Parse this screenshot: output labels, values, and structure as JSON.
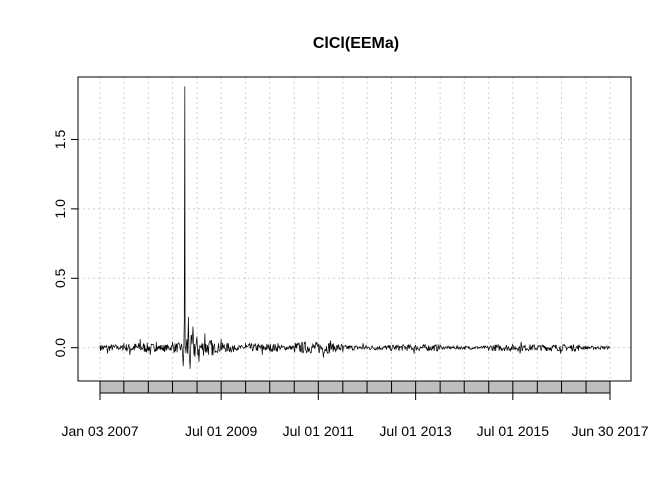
{
  "chart_data": {
    "type": "line",
    "title": "ClCl(EEMa)",
    "xlabel": "",
    "ylabel": "",
    "grid": true,
    "ylim": [
      -0.24,
      1.95
    ],
    "xlim": [
      "2007-01-03",
      "2017-06-30"
    ],
    "y_ticks": [
      {
        "value": 0.0,
        "label": "0.0"
      },
      {
        "value": 0.5,
        "label": "0.5"
      },
      {
        "value": 1.0,
        "label": "1.0"
      },
      {
        "value": 1.5,
        "label": "1.5"
      }
    ],
    "x_tick_labels": [
      {
        "date": "2007-01-03",
        "label": "Jan 03 2007"
      },
      {
        "date": "2009-07-01",
        "label": "Jul 01 2009"
      },
      {
        "date": "2011-07-01",
        "label": "Jul 01 2011"
      },
      {
        "date": "2013-07-01",
        "label": "Jul 01 2013"
      },
      {
        "date": "2015-07-01",
        "label": "Jul 01 2015"
      },
      {
        "date": "2017-06-30",
        "label": "Jun 30 2017"
      }
    ],
    "series": [
      {
        "color": "#000000",
        "points": [
          {
            "x": "2007-01-03",
            "y": 0.01
          },
          {
            "x": "2007-03-01",
            "y": -0.04
          },
          {
            "x": "2007-05-01",
            "y": 0.02
          },
          {
            "x": "2007-07-01",
            "y": 0.03
          },
          {
            "x": "2007-08-15",
            "y": -0.05
          },
          {
            "x": "2007-11-01",
            "y": 0.06
          },
          {
            "x": "2008-01-15",
            "y": -0.05
          },
          {
            "x": "2008-03-01",
            "y": 0.04
          },
          {
            "x": "2008-05-01",
            "y": -0.03
          },
          {
            "x": "2008-07-01",
            "y": 0.04
          },
          {
            "x": "2008-09-15",
            "y": -0.06
          },
          {
            "x": "2008-10-01",
            "y": 1.88
          },
          {
            "x": "2008-10-06",
            "y": 0.0
          },
          {
            "x": "2008-10-28",
            "y": 0.22
          },
          {
            "x": "2008-11-10",
            "y": -0.15
          },
          {
            "x": "2008-12-01",
            "y": 0.15
          },
          {
            "x": "2009-01-15",
            "y": -0.1
          },
          {
            "x": "2009-03-01",
            "y": 0.1
          },
          {
            "x": "2009-05-01",
            "y": -0.05
          },
          {
            "x": "2009-07-01",
            "y": 0.06
          },
          {
            "x": "2009-10-01",
            "y": -0.03
          },
          {
            "x": "2010-01-01",
            "y": 0.03
          },
          {
            "x": "2010-05-06",
            "y": -0.05
          },
          {
            "x": "2010-09-01",
            "y": 0.03
          },
          {
            "x": "2011-01-01",
            "y": -0.02
          },
          {
            "x": "2011-08-08",
            "y": -0.07
          },
          {
            "x": "2011-10-01",
            "y": 0.05
          },
          {
            "x": "2012-01-01",
            "y": -0.03
          },
          {
            "x": "2012-06-01",
            "y": 0.03
          },
          {
            "x": "2013-01-01",
            "y": -0.02
          },
          {
            "x": "2013-06-20",
            "y": -0.04
          },
          {
            "x": "2014-01-01",
            "y": 0.02
          },
          {
            "x": "2015-01-01",
            "y": -0.02
          },
          {
            "x": "2015-08-24",
            "y": -0.04
          },
          {
            "x": "2015-09-01",
            "y": 0.04
          },
          {
            "x": "2016-06-24",
            "y": -0.04
          },
          {
            "x": "2016-11-09",
            "y": 0.02
          },
          {
            "x": "2017-06-30",
            "y": 0.0
          }
        ]
      }
    ]
  }
}
